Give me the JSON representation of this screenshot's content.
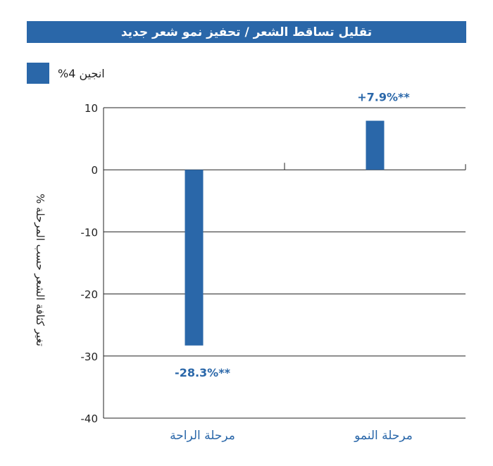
{
  "chart_data": {
    "type": "bar",
    "title": "تقليل تساقط الشعر / تحفيز نمو شعر جديد",
    "categories": [
      "مرحلة الراحة",
      "مرحلة النمو"
    ],
    "series": [
      {
        "name": "انجين 4%",
        "values": [
          -28.3,
          7.9
        ],
        "color": "#2a67a9"
      }
    ],
    "data_labels": [
      "-28.3%**",
      "+7.9%**"
    ],
    "ylabel": "تغير كثافة الشعر حسب المرحلة %",
    "xlabel": "",
    "ylim": [
      -40,
      10
    ],
    "yticks": [
      10,
      0,
      -10,
      -20,
      -30,
      -40
    ],
    "grid": true,
    "legend_position": "top-left"
  }
}
